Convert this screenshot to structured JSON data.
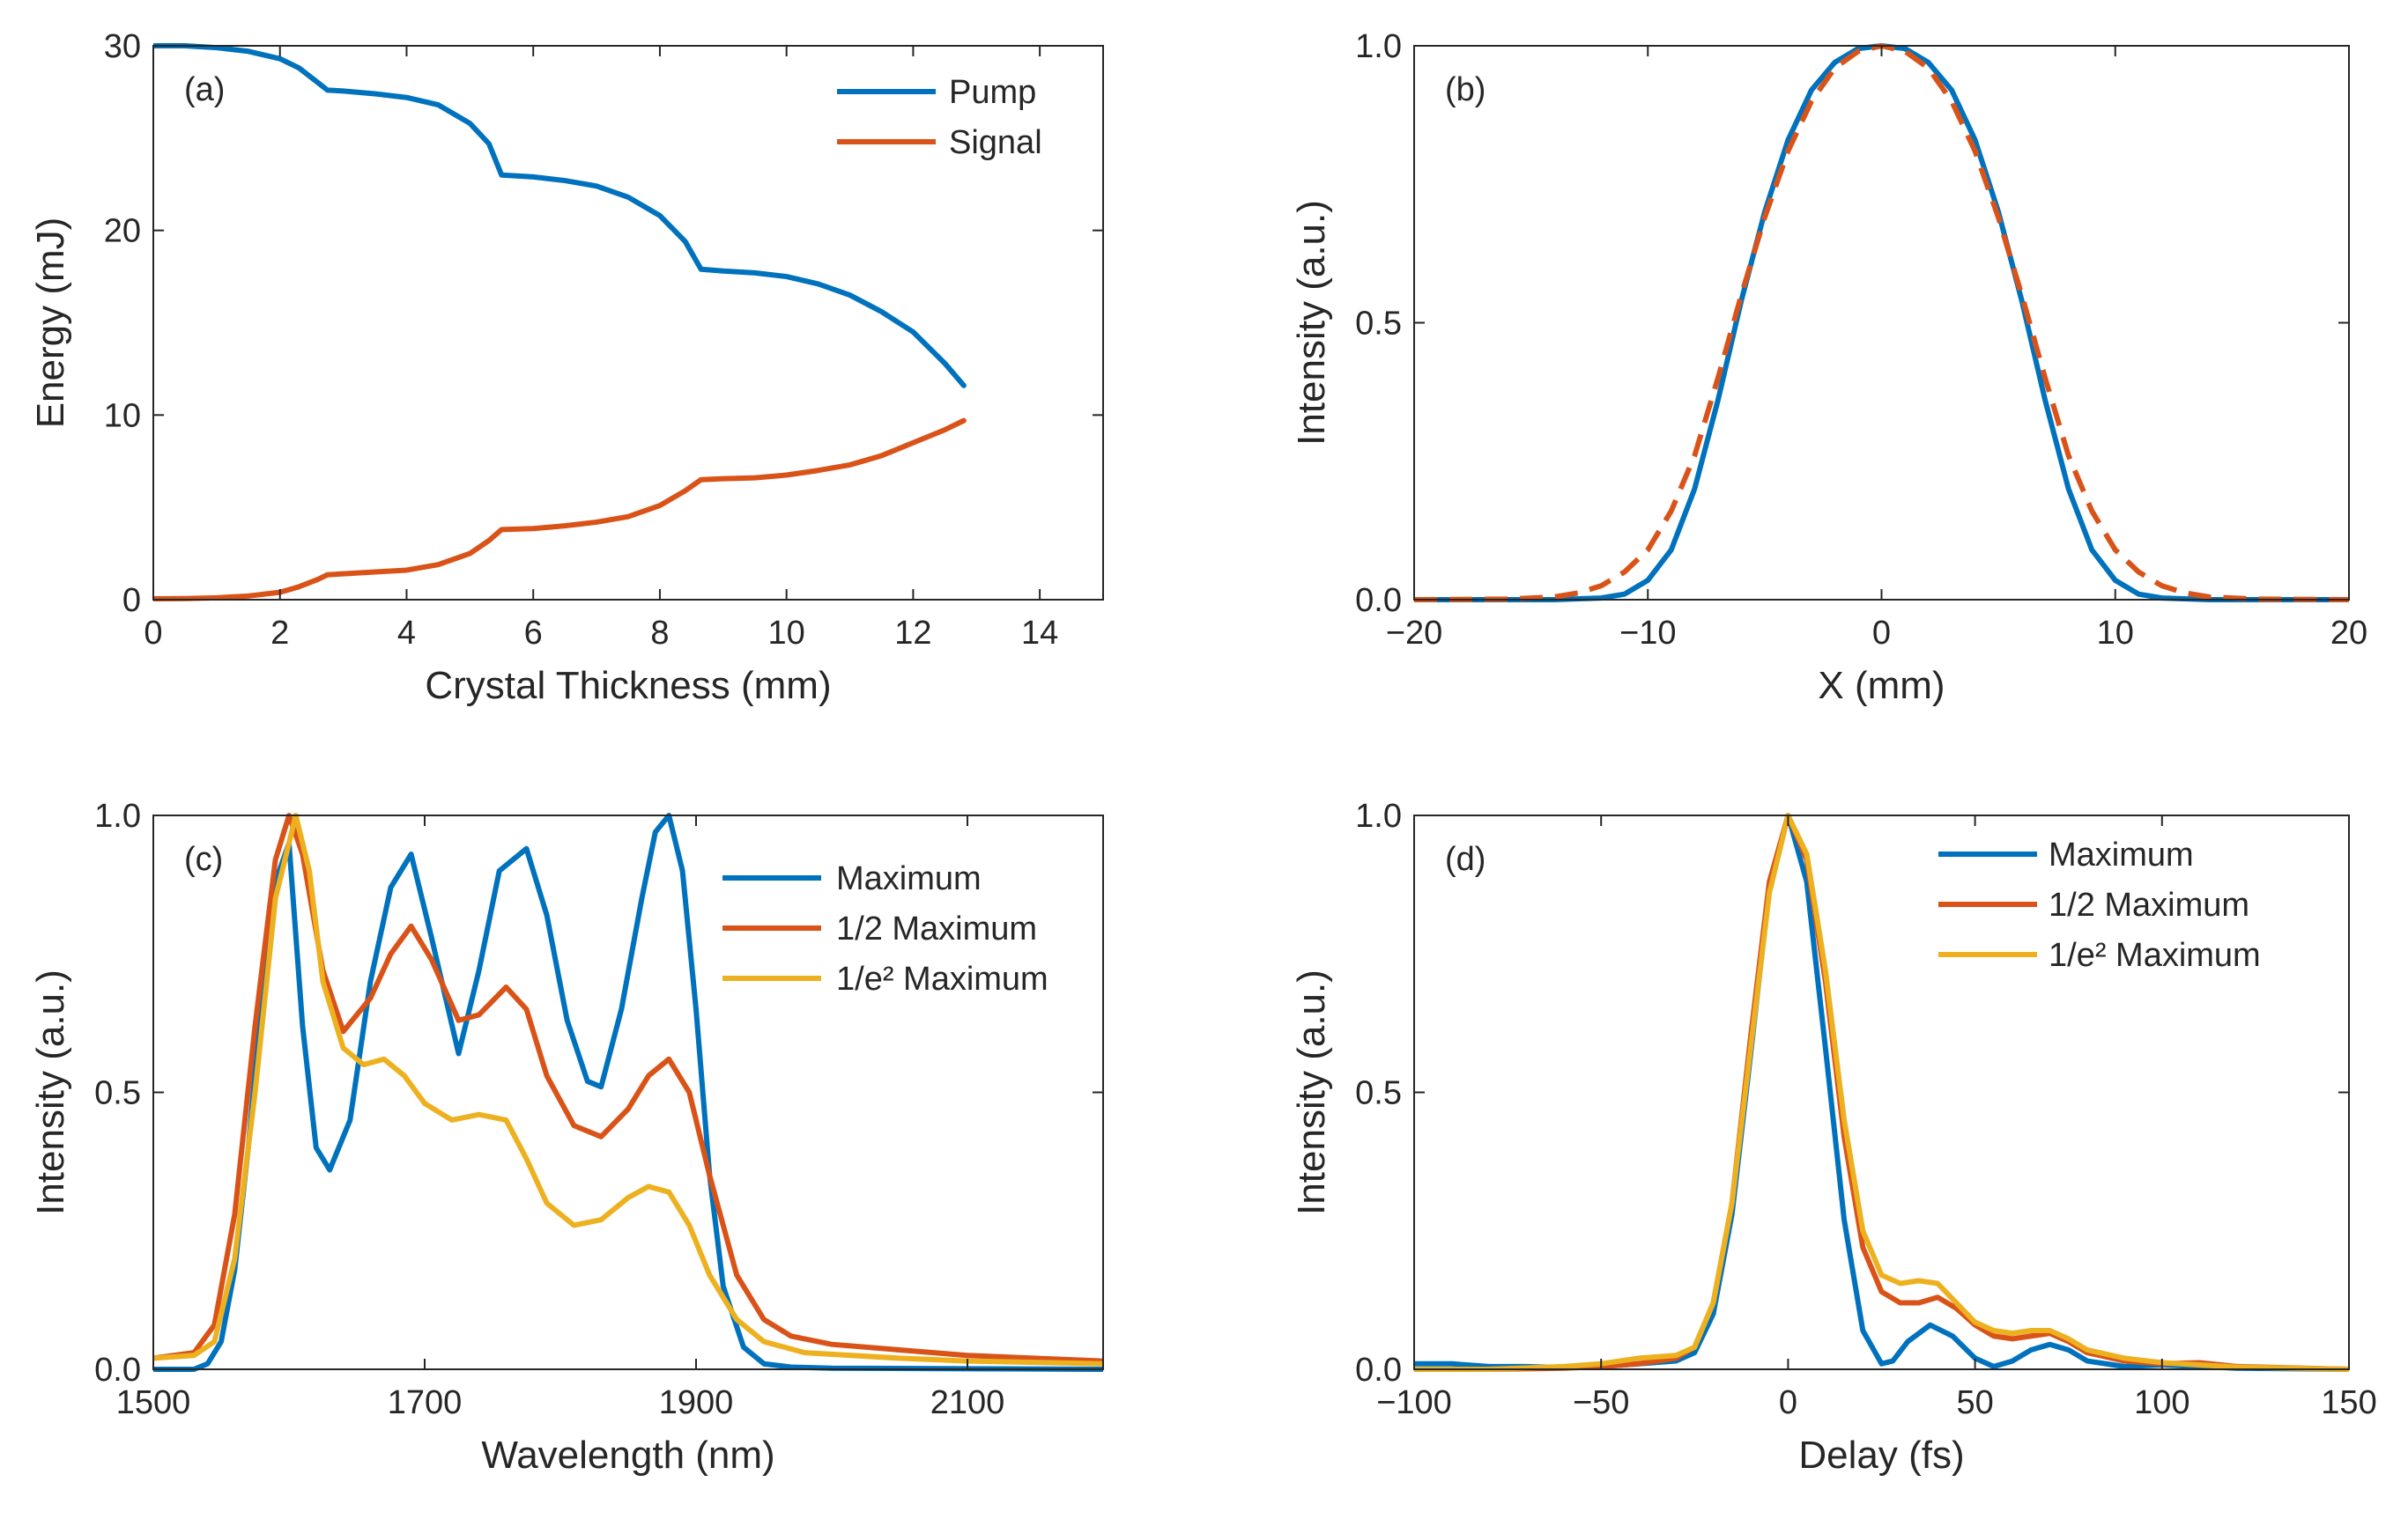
{
  "colors": {
    "blue": "#0072BD",
    "orange": "#D95319",
    "yellow": "#EDB120"
  },
  "chart_data": [
    {
      "id": "a",
      "type": "line",
      "panel_label": "(a)",
      "xlabel": "Crystal Thickness (mm)",
      "ylabel": "Energy (mJ)",
      "xlim": [
        0,
        15
      ],
      "ylim": [
        0,
        30
      ],
      "xticks": [
        0,
        2,
        4,
        6,
        8,
        10,
        12,
        14
      ],
      "xtick_labels": [
        "0",
        "2",
        "4",
        "6",
        "8",
        "10",
        "12",
        "14"
      ],
      "yticks": [
        0,
        10,
        20,
        30
      ],
      "ytick_labels": [
        "0",
        "10",
        "20",
        "30"
      ],
      "legend_position": "top-right",
      "series": [
        {
          "name": "Pump",
          "color": "#0072BD",
          "dash": false,
          "x": [
            0,
            0.5,
            1.0,
            1.5,
            2.0,
            2.3,
            2.6,
            2.75,
            3.0,
            3.5,
            4.0,
            4.5,
            5.0,
            5.3,
            5.5,
            6.0,
            6.5,
            7.0,
            7.5,
            8.0,
            8.4,
            8.65,
            9.0,
            9.5,
            10.0,
            10.5,
            11.0,
            11.5,
            12.0,
            12.5,
            12.8
          ],
          "y": [
            30.0,
            30.0,
            29.9,
            29.7,
            29.3,
            28.8,
            28.0,
            27.6,
            27.55,
            27.4,
            27.2,
            26.8,
            25.8,
            24.7,
            23.0,
            22.9,
            22.7,
            22.4,
            21.8,
            20.8,
            19.4,
            17.9,
            17.8,
            17.7,
            17.5,
            17.1,
            16.5,
            15.6,
            14.5,
            12.8,
            11.6
          ]
        },
        {
          "name": "Signal",
          "color": "#D95319",
          "dash": false,
          "x": [
            0,
            0.5,
            1.0,
            1.5,
            2.0,
            2.3,
            2.6,
            2.75,
            3.0,
            3.5,
            4.0,
            4.5,
            5.0,
            5.3,
            5.5,
            6.0,
            6.5,
            7.0,
            7.5,
            8.0,
            8.4,
            8.65,
            9.0,
            9.5,
            10.0,
            10.5,
            11.0,
            11.5,
            12.0,
            12.5,
            12.8
          ],
          "y": [
            0.05,
            0.06,
            0.1,
            0.2,
            0.4,
            0.7,
            1.1,
            1.35,
            1.4,
            1.5,
            1.6,
            1.9,
            2.5,
            3.2,
            3.8,
            3.85,
            4.0,
            4.2,
            4.5,
            5.1,
            5.9,
            6.5,
            6.55,
            6.6,
            6.75,
            7.0,
            7.3,
            7.8,
            8.5,
            9.2,
            9.7
          ]
        }
      ]
    },
    {
      "id": "b",
      "type": "line",
      "panel_label": "(b)",
      "xlabel": "X (mm)",
      "ylabel": "Intensity (a.u.)",
      "xlim": [
        -20,
        20
      ],
      "ylim": [
        0,
        1
      ],
      "xticks": [
        -20,
        -10,
        0,
        10,
        20
      ],
      "xtick_labels": [
        "−20",
        "−10",
        "0",
        "10",
        "20"
      ],
      "yticks": [
        0,
        0.5,
        1
      ],
      "ytick_labels": [
        "0.0",
        "0.5",
        "1.0"
      ],
      "legend_position": "none",
      "series": [
        {
          "name": "solid",
          "color": "#0072BD",
          "dash": false,
          "x": [
            -20,
            -14,
            -12,
            -11,
            -10,
            -9,
            -8,
            -7,
            -6,
            -5,
            -4,
            -3,
            -2,
            -1,
            0,
            1,
            2,
            3,
            4,
            5,
            6,
            7,
            8,
            9,
            10,
            11,
            12,
            14,
            20
          ],
          "y": [
            0,
            0,
            0.003,
            0.01,
            0.035,
            0.09,
            0.2,
            0.36,
            0.54,
            0.7,
            0.83,
            0.92,
            0.97,
            0.995,
            1.0,
            0.995,
            0.97,
            0.92,
            0.83,
            0.7,
            0.54,
            0.36,
            0.2,
            0.09,
            0.035,
            0.01,
            0.003,
            0,
            0
          ]
        },
        {
          "name": "dashed",
          "color": "#D95319",
          "dash": true,
          "x": [
            -20,
            -16,
            -14,
            -13,
            -12,
            -11,
            -10,
            -9,
            -8,
            -7,
            -6,
            -5,
            -4,
            -3,
            -2,
            -1,
            0,
            1,
            2,
            3,
            4,
            5,
            6,
            7,
            8,
            9,
            10,
            11,
            12,
            13,
            14,
            16,
            20
          ],
          "y": [
            0,
            0.001,
            0.005,
            0.012,
            0.025,
            0.05,
            0.09,
            0.16,
            0.26,
            0.4,
            0.55,
            0.69,
            0.81,
            0.9,
            0.96,
            0.99,
            1.0,
            0.99,
            0.96,
            0.9,
            0.81,
            0.69,
            0.55,
            0.4,
            0.26,
            0.16,
            0.09,
            0.05,
            0.025,
            0.012,
            0.005,
            0.001,
            0
          ]
        }
      ]
    },
    {
      "id": "c",
      "type": "line",
      "panel_label": "(c)",
      "xlabel": "Wavelength (nm)",
      "ylabel": "Intensity (a.u.)",
      "xlim": [
        1500,
        2200
      ],
      "ylim": [
        0,
        1
      ],
      "xticks": [
        1500,
        1700,
        1900,
        2100
      ],
      "xtick_labels": [
        "1500",
        "1700",
        "1900",
        "2100"
      ],
      "yticks": [
        0,
        0.5,
        1
      ],
      "ytick_labels": [
        "0.0",
        "0.5",
        "1.0"
      ],
      "legend_position": "top-right",
      "series": [
        {
          "name": "Maximum",
          "color": "#0072BD",
          "dash": false,
          "x": [
            1500,
            1530,
            1540,
            1550,
            1560,
            1570,
            1580,
            1590,
            1600,
            1610,
            1620,
            1630,
            1645,
            1660,
            1675,
            1690,
            1705,
            1725,
            1740,
            1755,
            1775,
            1790,
            1805,
            1820,
            1830,
            1845,
            1860,
            1870,
            1880,
            1890,
            1900,
            1910,
            1920,
            1935,
            1950,
            1970,
            2000,
            2100,
            2200
          ],
          "y": [
            0,
            0,
            0.01,
            0.05,
            0.18,
            0.4,
            0.67,
            0.88,
            0.95,
            0.62,
            0.4,
            0.36,
            0.45,
            0.7,
            0.87,
            0.93,
            0.78,
            0.57,
            0.72,
            0.9,
            0.94,
            0.82,
            0.63,
            0.52,
            0.51,
            0.65,
            0.85,
            0.97,
            1.0,
            0.9,
            0.65,
            0.35,
            0.15,
            0.04,
            0.01,
            0.004,
            0.002,
            0.001,
            0
          ]
        },
        {
          "name": "1/2 Maximum",
          "color": "#D95319",
          "dash": false,
          "x": [
            1500,
            1530,
            1545,
            1560,
            1575,
            1590,
            1600,
            1610,
            1625,
            1640,
            1660,
            1675,
            1690,
            1705,
            1725,
            1740,
            1760,
            1775,
            1790,
            1810,
            1830,
            1850,
            1865,
            1880,
            1895,
            1910,
            1930,
            1950,
            1970,
            2000,
            2050,
            2100,
            2200
          ],
          "y": [
            0.02,
            0.03,
            0.08,
            0.28,
            0.62,
            0.92,
            1.0,
            0.93,
            0.72,
            0.61,
            0.67,
            0.75,
            0.8,
            0.74,
            0.63,
            0.64,
            0.69,
            0.65,
            0.53,
            0.44,
            0.42,
            0.47,
            0.53,
            0.56,
            0.5,
            0.35,
            0.17,
            0.09,
            0.06,
            0.045,
            0.035,
            0.025,
            0.015
          ]
        },
        {
          "name": "1/e² Maximum",
          "color": "#EDB120",
          "dash": false,
          "x": [
            1500,
            1530,
            1545,
            1560,
            1575,
            1590,
            1605,
            1615,
            1625,
            1640,
            1655,
            1670,
            1685,
            1700,
            1720,
            1740,
            1760,
            1775,
            1790,
            1810,
            1830,
            1850,
            1865,
            1880,
            1895,
            1910,
            1930,
            1950,
            1980,
            2050,
            2100,
            2200
          ],
          "y": [
            0.02,
            0.025,
            0.05,
            0.2,
            0.5,
            0.85,
            1.0,
            0.9,
            0.7,
            0.58,
            0.55,
            0.56,
            0.53,
            0.48,
            0.45,
            0.46,
            0.45,
            0.38,
            0.3,
            0.26,
            0.27,
            0.31,
            0.33,
            0.32,
            0.26,
            0.17,
            0.09,
            0.05,
            0.03,
            0.02,
            0.015,
            0.01
          ]
        }
      ]
    },
    {
      "id": "d",
      "type": "line",
      "panel_label": "(d)",
      "xlabel": "Delay (fs)",
      "ylabel": "Intensity (a.u.)",
      "xlim": [
        -100,
        150
      ],
      "ylim": [
        0,
        1
      ],
      "xticks": [
        -100,
        -50,
        0,
        50,
        100,
        150
      ],
      "xtick_labels": [
        "−100",
        "−50",
        "0",
        "50",
        "100",
        "150"
      ],
      "yticks": [
        0,
        0.5,
        1
      ],
      "ytick_labels": [
        "0.0",
        "0.5",
        "1.0"
      ],
      "legend_position": "top-center",
      "series": [
        {
          "name": "Maximum",
          "color": "#0072BD",
          "dash": false,
          "x": [
            -100,
            -90,
            -80,
            -70,
            -60,
            -50,
            -40,
            -30,
            -25,
            -20,
            -15,
            -10,
            -5,
            0,
            5,
            10,
            15,
            20,
            25,
            28,
            32,
            38,
            44,
            50,
            55,
            60,
            65,
            70,
            75,
            80,
            90,
            100,
            110,
            120,
            150
          ],
          "y": [
            0.01,
            0.01,
            0.005,
            0.005,
            0.003,
            0.005,
            0.01,
            0.015,
            0.03,
            0.1,
            0.28,
            0.57,
            0.87,
            1.0,
            0.88,
            0.58,
            0.27,
            0.07,
            0.01,
            0.015,
            0.05,
            0.08,
            0.06,
            0.02,
            0.005,
            0.015,
            0.035,
            0.045,
            0.035,
            0.015,
            0.005,
            0.008,
            0.005,
            0.002,
            0
          ]
        },
        {
          "name": "1/2 Maximum",
          "color": "#D95319",
          "dash": false,
          "x": [
            -100,
            -80,
            -60,
            -50,
            -40,
            -30,
            -25,
            -20,
            -15,
            -10,
            -5,
            0,
            5,
            10,
            15,
            20,
            25,
            30,
            35,
            40,
            45,
            50,
            55,
            60,
            65,
            70,
            75,
            80,
            90,
            100,
            110,
            120,
            150
          ],
          "y": [
            0,
            0,
            0.002,
            0.005,
            0.01,
            0.02,
            0.04,
            0.12,
            0.3,
            0.6,
            0.88,
            1.0,
            0.92,
            0.7,
            0.42,
            0.22,
            0.14,
            0.12,
            0.12,
            0.13,
            0.11,
            0.08,
            0.06,
            0.055,
            0.06,
            0.065,
            0.05,
            0.03,
            0.015,
            0.01,
            0.012,
            0.005,
            0
          ]
        },
        {
          "name": "1/e² Maximum",
          "color": "#EDB120",
          "dash": false,
          "x": [
            -100,
            -80,
            -60,
            -50,
            -40,
            -30,
            -25,
            -20,
            -15,
            -10,
            -5,
            0,
            5,
            10,
            15,
            20,
            25,
            30,
            35,
            40,
            45,
            50,
            55,
            60,
            65,
            70,
            75,
            80,
            90,
            100,
            110,
            120,
            150
          ],
          "y": [
            0,
            0,
            0.005,
            0.01,
            0.02,
            0.025,
            0.04,
            0.12,
            0.3,
            0.58,
            0.86,
            1.0,
            0.93,
            0.72,
            0.45,
            0.25,
            0.17,
            0.155,
            0.16,
            0.155,
            0.12,
            0.085,
            0.07,
            0.065,
            0.07,
            0.07,
            0.055,
            0.035,
            0.02,
            0.012,
            0.008,
            0.004,
            0
          ]
        }
      ]
    }
  ]
}
